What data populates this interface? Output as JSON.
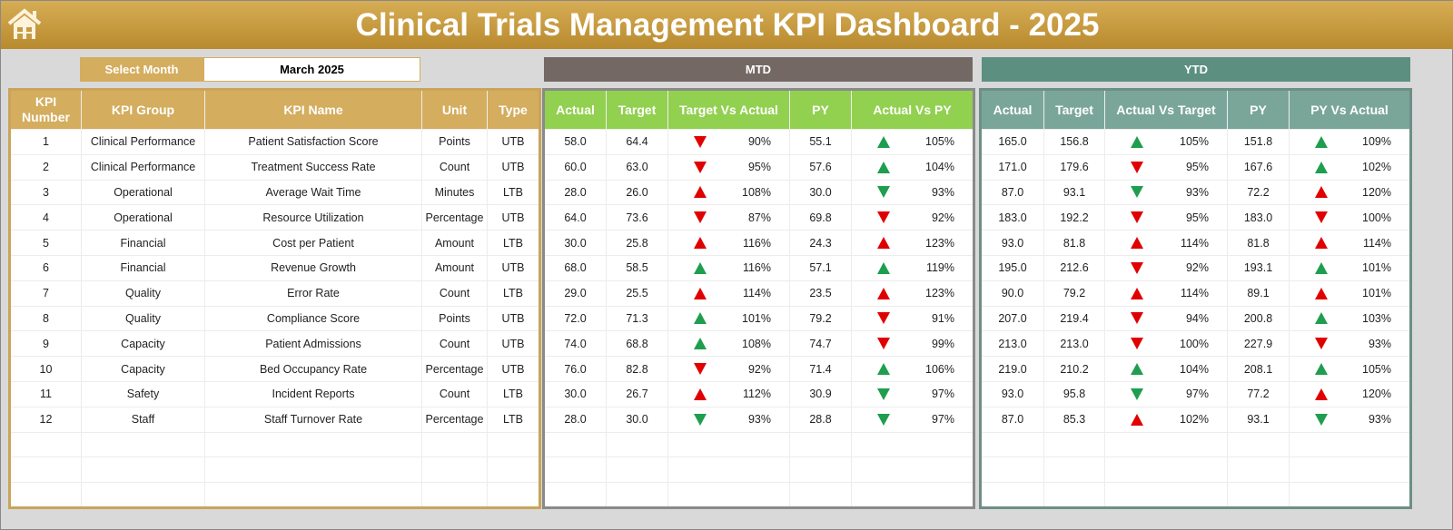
{
  "header": {
    "title": "Clinical Trials Management KPI Dashboard - 2025",
    "home_icon": "home-icon"
  },
  "select_month": {
    "label": "Select Month",
    "value": "March 2025"
  },
  "sections": {
    "mtd": "MTD",
    "ytd": "YTD"
  },
  "colors": {
    "up_good": "#1e9e4e",
    "bad": "#e00000",
    "gold": "#d4ad5e",
    "mtd_header": "#92d050",
    "ytd_header": "#7aa69a"
  },
  "kpi_headers": [
    "KPI Number",
    "KPI Group",
    "KPI Name",
    "Unit",
    "Type"
  ],
  "mtd_headers": [
    "Actual",
    "Target",
    "Target Vs Actual",
    "PY",
    "Actual Vs PY"
  ],
  "ytd_headers": [
    "Actual",
    "Target",
    "Actual Vs Target",
    "PY",
    "PY Vs Actual"
  ],
  "rows": [
    {
      "num": "1",
      "group": "Clinical Performance",
      "name": "Patient Satisfaction Score",
      "unit": "Points",
      "type": "UTB",
      "mtd": {
        "actual": "58.0",
        "target": "64.4",
        "tva": "90%",
        "tva_icon": "down-red",
        "py": "55.1",
        "avp": "105%",
        "avp_icon": "up-green"
      },
      "ytd": {
        "actual": "165.0",
        "target": "156.8",
        "avt": "105%",
        "avt_icon": "up-green",
        "py": "151.8",
        "pva": "109%",
        "pva_icon": "up-green"
      }
    },
    {
      "num": "2",
      "group": "Clinical Performance",
      "name": "Treatment Success Rate",
      "unit": "Count",
      "type": "UTB",
      "mtd": {
        "actual": "60.0",
        "target": "63.0",
        "tva": "95%",
        "tva_icon": "down-red",
        "py": "57.6",
        "avp": "104%",
        "avp_icon": "up-green"
      },
      "ytd": {
        "actual": "171.0",
        "target": "179.6",
        "avt": "95%",
        "avt_icon": "down-red",
        "py": "167.6",
        "pva": "102%",
        "pva_icon": "up-green"
      }
    },
    {
      "num": "3",
      "group": "Operational",
      "name": "Average Wait Time",
      "unit": "Minutes",
      "type": "LTB",
      "mtd": {
        "actual": "28.0",
        "target": "26.0",
        "tva": "108%",
        "tva_icon": "up-red",
        "py": "30.0",
        "avp": "93%",
        "avp_icon": "down-green"
      },
      "ytd": {
        "actual": "87.0",
        "target": "93.1",
        "avt": "93%",
        "avt_icon": "down-green",
        "py": "72.2",
        "pva": "120%",
        "pva_icon": "up-red"
      }
    },
    {
      "num": "4",
      "group": "Operational",
      "name": "Resource Utilization",
      "unit": "Percentage",
      "type": "UTB",
      "mtd": {
        "actual": "64.0",
        "target": "73.6",
        "tva": "87%",
        "tva_icon": "down-red",
        "py": "69.8",
        "avp": "92%",
        "avp_icon": "down-red"
      },
      "ytd": {
        "actual": "183.0",
        "target": "192.2",
        "avt": "95%",
        "avt_icon": "down-red",
        "py": "183.0",
        "pva": "100%",
        "pva_icon": "down-red"
      }
    },
    {
      "num": "5",
      "group": "Financial",
      "name": "Cost per Patient",
      "unit": "Amount",
      "type": "LTB",
      "mtd": {
        "actual": "30.0",
        "target": "25.8",
        "tva": "116%",
        "tva_icon": "up-red",
        "py": "24.3",
        "avp": "123%",
        "avp_icon": "up-red"
      },
      "ytd": {
        "actual": "93.0",
        "target": "81.8",
        "avt": "114%",
        "avt_icon": "up-red",
        "py": "81.8",
        "pva": "114%",
        "pva_icon": "up-red"
      }
    },
    {
      "num": "6",
      "group": "Financial",
      "name": "Revenue Growth",
      "unit": "Amount",
      "type": "UTB",
      "mtd": {
        "actual": "68.0",
        "target": "58.5",
        "tva": "116%",
        "tva_icon": "up-green",
        "py": "57.1",
        "avp": "119%",
        "avp_icon": "up-green"
      },
      "ytd": {
        "actual": "195.0",
        "target": "212.6",
        "avt": "92%",
        "avt_icon": "down-red",
        "py": "193.1",
        "pva": "101%",
        "pva_icon": "up-green"
      }
    },
    {
      "num": "7",
      "group": "Quality",
      "name": "Error Rate",
      "unit": "Count",
      "type": "LTB",
      "mtd": {
        "actual": "29.0",
        "target": "25.5",
        "tva": "114%",
        "tva_icon": "up-red",
        "py": "23.5",
        "avp": "123%",
        "avp_icon": "up-red"
      },
      "ytd": {
        "actual": "90.0",
        "target": "79.2",
        "avt": "114%",
        "avt_icon": "up-red",
        "py": "89.1",
        "pva": "101%",
        "pva_icon": "up-red"
      }
    },
    {
      "num": "8",
      "group": "Quality",
      "name": "Compliance Score",
      "unit": "Points",
      "type": "UTB",
      "mtd": {
        "actual": "72.0",
        "target": "71.3",
        "tva": "101%",
        "tva_icon": "up-green",
        "py": "79.2",
        "avp": "91%",
        "avp_icon": "down-red"
      },
      "ytd": {
        "actual": "207.0",
        "target": "219.4",
        "avt": "94%",
        "avt_icon": "down-red",
        "py": "200.8",
        "pva": "103%",
        "pva_icon": "up-green"
      }
    },
    {
      "num": "9",
      "group": "Capacity",
      "name": "Patient Admissions",
      "unit": "Count",
      "type": "UTB",
      "mtd": {
        "actual": "74.0",
        "target": "68.8",
        "tva": "108%",
        "tva_icon": "up-green",
        "py": "74.7",
        "avp": "99%",
        "avp_icon": "down-red"
      },
      "ytd": {
        "actual": "213.0",
        "target": "213.0",
        "avt": "100%",
        "avt_icon": "down-red",
        "py": "227.9",
        "pva": "93%",
        "pva_icon": "down-red"
      }
    },
    {
      "num": "10",
      "group": "Capacity",
      "name": "Bed Occupancy Rate",
      "unit": "Percentage",
      "type": "UTB",
      "mtd": {
        "actual": "76.0",
        "target": "82.8",
        "tva": "92%",
        "tva_icon": "down-red",
        "py": "71.4",
        "avp": "106%",
        "avp_icon": "up-green"
      },
      "ytd": {
        "actual": "219.0",
        "target": "210.2",
        "avt": "104%",
        "avt_icon": "up-green",
        "py": "208.1",
        "pva": "105%",
        "pva_icon": "up-green"
      }
    },
    {
      "num": "11",
      "group": "Safety",
      "name": "Incident Reports",
      "unit": "Count",
      "type": "LTB",
      "mtd": {
        "actual": "30.0",
        "target": "26.7",
        "tva": "112%",
        "tva_icon": "up-red",
        "py": "30.9",
        "avp": "97%",
        "avp_icon": "down-green"
      },
      "ytd": {
        "actual": "93.0",
        "target": "95.8",
        "avt": "97%",
        "avt_icon": "down-green",
        "py": "77.2",
        "pva": "120%",
        "pva_icon": "up-red"
      }
    },
    {
      "num": "12",
      "group": "Staff",
      "name": "Staff Turnover Rate",
      "unit": "Percentage",
      "type": "LTB",
      "mtd": {
        "actual": "28.0",
        "target": "30.0",
        "tva": "93%",
        "tva_icon": "down-green",
        "py": "28.8",
        "avp": "97%",
        "avp_icon": "down-green"
      },
      "ytd": {
        "actual": "87.0",
        "target": "85.3",
        "avt": "102%",
        "avt_icon": "up-red",
        "py": "93.1",
        "pva": "93%",
        "pva_icon": "down-green"
      }
    }
  ]
}
